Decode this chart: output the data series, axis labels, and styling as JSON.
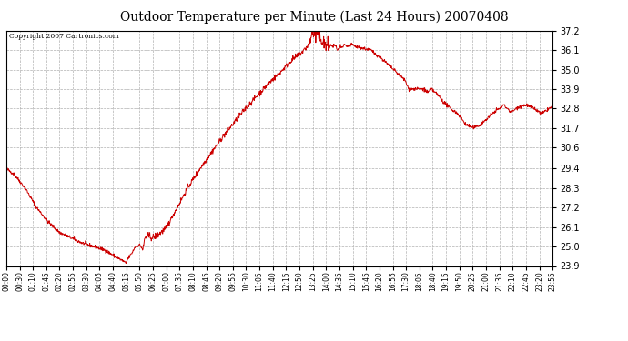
{
  "title": "Outdoor Temperature per Minute (Last 24 Hours) 20070408",
  "copyright_text": "Copyright 2007 Cartronics.com",
  "line_color": "#cc0000",
  "background_color": "#ffffff",
  "plot_background": "#ffffff",
  "grid_color": "#b0b0b0",
  "title_fontsize": 11,
  "yticks": [
    23.9,
    25.0,
    26.1,
    27.2,
    28.3,
    29.4,
    30.6,
    31.7,
    32.8,
    33.9,
    35.0,
    36.1,
    37.2
  ],
  "ymin": 23.9,
  "ymax": 37.2,
  "xtick_labels": [
    "00:00",
    "00:30",
    "01:10",
    "01:45",
    "02:20",
    "02:55",
    "03:30",
    "04:05",
    "04:40",
    "05:15",
    "05:50",
    "06:25",
    "07:00",
    "07:35",
    "08:10",
    "08:45",
    "09:20",
    "09:55",
    "10:30",
    "11:05",
    "11:40",
    "12:15",
    "12:50",
    "13:25",
    "14:00",
    "14:35",
    "15:10",
    "15:45",
    "16:20",
    "16:55",
    "17:30",
    "18:05",
    "18:40",
    "19:15",
    "19:50",
    "20:25",
    "21:00",
    "21:35",
    "22:10",
    "22:45",
    "23:20",
    "23:55"
  ],
  "num_points": 1440,
  "waypoints": [
    [
      0,
      29.4
    ],
    [
      20,
      29.1
    ],
    [
      50,
      28.3
    ],
    [
      80,
      27.2
    ],
    [
      110,
      26.4
    ],
    [
      140,
      25.8
    ],
    [
      170,
      25.5
    ],
    [
      200,
      25.2
    ],
    [
      230,
      25.0
    ],
    [
      260,
      24.8
    ],
    [
      290,
      24.4
    ],
    [
      310,
      24.15
    ],
    [
      315,
      24.05
    ],
    [
      320,
      24.3
    ],
    [
      330,
      24.6
    ],
    [
      340,
      25.0
    ],
    [
      350,
      25.1
    ],
    [
      355,
      25.0
    ],
    [
      360,
      24.8
    ],
    [
      365,
      25.5
    ],
    [
      375,
      25.6
    ],
    [
      385,
      25.5
    ],
    [
      395,
      25.6
    ],
    [
      420,
      26.0
    ],
    [
      450,
      27.2
    ],
    [
      480,
      28.4
    ],
    [
      510,
      29.4
    ],
    [
      540,
      30.3
    ],
    [
      570,
      31.2
    ],
    [
      600,
      32.0
    ],
    [
      630,
      32.8
    ],
    [
      660,
      33.5
    ],
    [
      690,
      34.2
    ],
    [
      720,
      34.8
    ],
    [
      750,
      35.5
    ],
    [
      780,
      36.0
    ],
    [
      800,
      36.5
    ],
    [
      805,
      37.2
    ],
    [
      815,
      36.9
    ],
    [
      820,
      37.1
    ],
    [
      825,
      36.7
    ],
    [
      830,
      36.8
    ],
    [
      835,
      36.5
    ],
    [
      840,
      36.4
    ],
    [
      845,
      36.3
    ],
    [
      850,
      36.2
    ],
    [
      855,
      36.4
    ],
    [
      860,
      36.3
    ],
    [
      865,
      36.4
    ],
    [
      870,
      36.2
    ],
    [
      875,
      36.1
    ],
    [
      880,
      36.3
    ],
    [
      885,
      36.2
    ],
    [
      890,
      36.4
    ],
    [
      895,
      36.3
    ],
    [
      910,
      36.4
    ],
    [
      920,
      36.3
    ],
    [
      940,
      36.2
    ],
    [
      960,
      36.1
    ],
    [
      990,
      35.6
    ],
    [
      1020,
      35.0
    ],
    [
      1050,
      34.4
    ],
    [
      1060,
      33.9
    ],
    [
      1080,
      33.9
    ],
    [
      1100,
      33.9
    ],
    [
      1110,
      33.7
    ],
    [
      1120,
      33.9
    ],
    [
      1130,
      33.7
    ],
    [
      1140,
      33.5
    ],
    [
      1150,
      33.2
    ],
    [
      1160,
      33.0
    ],
    [
      1170,
      32.8
    ],
    [
      1190,
      32.5
    ],
    [
      1210,
      31.9
    ],
    [
      1230,
      31.7
    ],
    [
      1250,
      31.9
    ],
    [
      1270,
      32.3
    ],
    [
      1290,
      32.7
    ],
    [
      1300,
      32.8
    ],
    [
      1310,
      33.0
    ],
    [
      1320,
      32.8
    ],
    [
      1330,
      32.6
    ],
    [
      1350,
      32.9
    ],
    [
      1370,
      33.0
    ],
    [
      1390,
      32.8
    ],
    [
      1410,
      32.5
    ],
    [
      1430,
      32.8
    ],
    [
      1439,
      32.9
    ]
  ]
}
